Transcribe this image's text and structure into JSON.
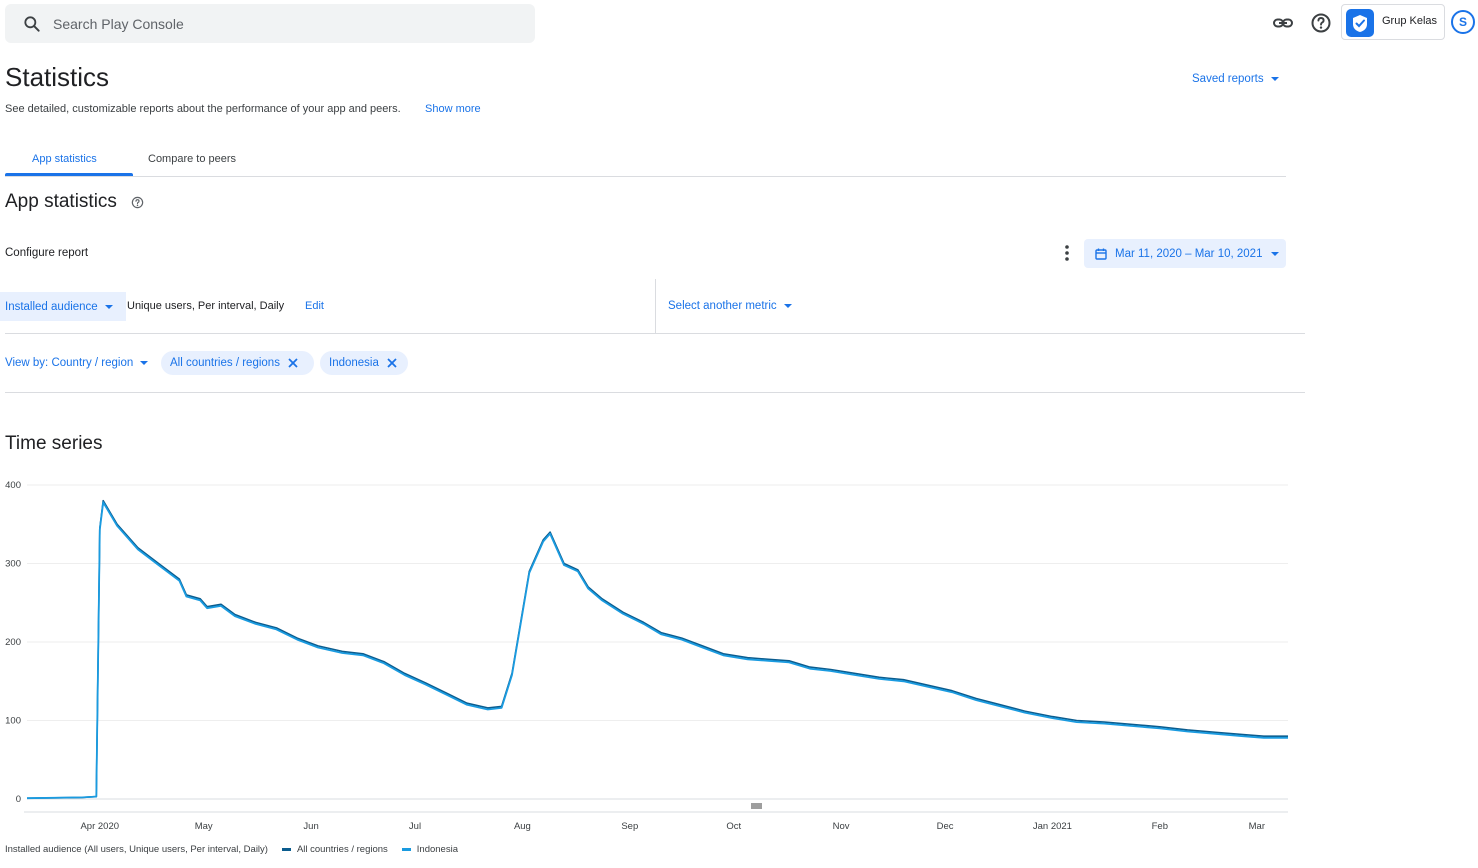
{
  "search": {
    "placeholder": "Search Play Console"
  },
  "app": {
    "name": "Grup Kelas"
  },
  "account": {
    "initial": "S"
  },
  "header": {
    "title": "Statistics",
    "description": "See detailed, customizable reports about the performance of your app and peers.",
    "show_more": "Show more",
    "saved_reports": "Saved reports"
  },
  "tabs": [
    {
      "label": "App statistics",
      "active": true
    },
    {
      "label": "Compare to peers",
      "active": false
    }
  ],
  "section": {
    "title": "App statistics"
  },
  "configure": {
    "label": "Configure report",
    "date_range": "Mar 11, 2020 – Mar 10, 2021"
  },
  "metric": {
    "name": "Installed audience",
    "detail": "Unique users, Per interval, Daily",
    "edit": "Edit",
    "select_another": "Select another metric"
  },
  "view_by": {
    "label": "View by: Country / region",
    "chips": [
      "All countries / regions",
      "Indonesia"
    ]
  },
  "colors": {
    "accent": "#1a73e8",
    "series_all": "#0b5c8e",
    "series_indonesia": "#1a9be0"
  },
  "chart_data": {
    "type": "line",
    "title": "Time series",
    "ylim": [
      0,
      400
    ],
    "yticks": [
      0,
      100,
      200,
      300,
      400
    ],
    "xlim": [
      "2020-03-11",
      "2021-03-10"
    ],
    "xticks": [
      {
        "date": "2020-04-01",
        "label": "Apr 2020"
      },
      {
        "date": "2020-05-01",
        "label": "May"
      },
      {
        "date": "2020-06-01",
        "label": "Jun"
      },
      {
        "date": "2020-07-01",
        "label": "Jul"
      },
      {
        "date": "2020-08-01",
        "label": "Aug"
      },
      {
        "date": "2020-09-01",
        "label": "Sep"
      },
      {
        "date": "2020-10-01",
        "label": "Oct"
      },
      {
        "date": "2020-11-01",
        "label": "Nov"
      },
      {
        "date": "2020-12-01",
        "label": "Dec"
      },
      {
        "date": "2021-01-01",
        "label": "Jan 2021"
      },
      {
        "date": "2021-02-01",
        "label": "Feb"
      },
      {
        "date": "2021-03-01",
        "label": "Mar"
      }
    ],
    "legend_title": "Installed audience (All users, Unique users, Per interval, Daily)",
    "series": [
      {
        "name": "All countries / regions",
        "points": [
          [
            "2020-03-11",
            1
          ],
          [
            "2020-03-27",
            2
          ],
          [
            "2020-03-31",
            3
          ],
          [
            "2020-04-01",
            345
          ],
          [
            "2020-04-02",
            380
          ],
          [
            "2020-04-06",
            350
          ],
          [
            "2020-04-12",
            320
          ],
          [
            "2020-04-18",
            300
          ],
          [
            "2020-04-24",
            280
          ],
          [
            "2020-04-26",
            260
          ],
          [
            "2020-04-30",
            255
          ],
          [
            "2020-05-02",
            245
          ],
          [
            "2020-05-06",
            248
          ],
          [
            "2020-05-10",
            235
          ],
          [
            "2020-05-16",
            225
          ],
          [
            "2020-05-22",
            218
          ],
          [
            "2020-05-28",
            205
          ],
          [
            "2020-06-03",
            195
          ],
          [
            "2020-06-10",
            188
          ],
          [
            "2020-06-16",
            185
          ],
          [
            "2020-06-22",
            175
          ],
          [
            "2020-06-28",
            160
          ],
          [
            "2020-07-04",
            148
          ],
          [
            "2020-07-10",
            135
          ],
          [
            "2020-07-16",
            122
          ],
          [
            "2020-07-22",
            116
          ],
          [
            "2020-07-26",
            118
          ],
          [
            "2020-07-29",
            160
          ],
          [
            "2020-08-03",
            290
          ],
          [
            "2020-08-07",
            330
          ],
          [
            "2020-08-09",
            340
          ],
          [
            "2020-08-13",
            300
          ],
          [
            "2020-08-17",
            292
          ],
          [
            "2020-08-20",
            270
          ],
          [
            "2020-08-24",
            255
          ],
          [
            "2020-08-30",
            238
          ],
          [
            "2020-09-05",
            225
          ],
          [
            "2020-09-10",
            212
          ],
          [
            "2020-09-16",
            205
          ],
          [
            "2020-09-22",
            195
          ],
          [
            "2020-09-28",
            185
          ],
          [
            "2020-10-05",
            180
          ],
          [
            "2020-10-11",
            178
          ],
          [
            "2020-10-17",
            176
          ],
          [
            "2020-10-23",
            168
          ],
          [
            "2020-10-29",
            165
          ],
          [
            "2020-11-05",
            160
          ],
          [
            "2020-11-12",
            155
          ],
          [
            "2020-11-19",
            152
          ],
          [
            "2020-11-26",
            145
          ],
          [
            "2020-12-03",
            138
          ],
          [
            "2020-12-10",
            128
          ],
          [
            "2020-12-17",
            120
          ],
          [
            "2020-12-24",
            112
          ],
          [
            "2021-01-01",
            105
          ],
          [
            "2021-01-08",
            100
          ],
          [
            "2021-01-16",
            98
          ],
          [
            "2021-01-24",
            95
          ],
          [
            "2021-02-01",
            92
          ],
          [
            "2021-02-09",
            88
          ],
          [
            "2021-02-17",
            85
          ],
          [
            "2021-02-25",
            82
          ],
          [
            "2021-03-03",
            80
          ],
          [
            "2021-03-10",
            80
          ]
        ]
      },
      {
        "name": "Indonesia",
        "points": [
          [
            "2020-03-11",
            1
          ],
          [
            "2020-03-27",
            2
          ],
          [
            "2020-03-31",
            3
          ],
          [
            "2020-04-01",
            343
          ],
          [
            "2020-04-02",
            378
          ],
          [
            "2020-04-06",
            348
          ],
          [
            "2020-04-12",
            318
          ],
          [
            "2020-04-18",
            298
          ],
          [
            "2020-04-24",
            278
          ],
          [
            "2020-04-26",
            258
          ],
          [
            "2020-04-30",
            253
          ],
          [
            "2020-05-02",
            243
          ],
          [
            "2020-05-06",
            246
          ],
          [
            "2020-05-10",
            233
          ],
          [
            "2020-05-16",
            223
          ],
          [
            "2020-05-22",
            216
          ],
          [
            "2020-05-28",
            203
          ],
          [
            "2020-06-03",
            193
          ],
          [
            "2020-06-10",
            186
          ],
          [
            "2020-06-16",
            183
          ],
          [
            "2020-06-22",
            173
          ],
          [
            "2020-06-28",
            158
          ],
          [
            "2020-07-04",
            146
          ],
          [
            "2020-07-10",
            133
          ],
          [
            "2020-07-16",
            120
          ],
          [
            "2020-07-22",
            114
          ],
          [
            "2020-07-26",
            116
          ],
          [
            "2020-07-29",
            158
          ],
          [
            "2020-08-03",
            288
          ],
          [
            "2020-08-07",
            328
          ],
          [
            "2020-08-09",
            338
          ],
          [
            "2020-08-13",
            298
          ],
          [
            "2020-08-17",
            290
          ],
          [
            "2020-08-20",
            268
          ],
          [
            "2020-08-24",
            253
          ],
          [
            "2020-08-30",
            236
          ],
          [
            "2020-09-05",
            223
          ],
          [
            "2020-09-10",
            210
          ],
          [
            "2020-09-16",
            203
          ],
          [
            "2020-09-22",
            193
          ],
          [
            "2020-09-28",
            183
          ],
          [
            "2020-10-05",
            178
          ],
          [
            "2020-10-11",
            176
          ],
          [
            "2020-10-17",
            174
          ],
          [
            "2020-10-23",
            166
          ],
          [
            "2020-10-29",
            163
          ],
          [
            "2020-11-05",
            158
          ],
          [
            "2020-11-12",
            153
          ],
          [
            "2020-11-19",
            150
          ],
          [
            "2020-11-26",
            143
          ],
          [
            "2020-12-03",
            136
          ],
          [
            "2020-12-10",
            126
          ],
          [
            "2020-12-17",
            118
          ],
          [
            "2020-12-24",
            110
          ],
          [
            "2021-01-01",
            103
          ],
          [
            "2021-01-08",
            98
          ],
          [
            "2021-01-16",
            96
          ],
          [
            "2021-01-24",
            93
          ],
          [
            "2021-02-01",
            90
          ],
          [
            "2021-02-09",
            86
          ],
          [
            "2021-02-17",
            83
          ],
          [
            "2021-02-25",
            80
          ],
          [
            "2021-03-03",
            78
          ],
          [
            "2021-03-10",
            78
          ]
        ]
      }
    ],
    "grid": true,
    "legend_position": "bottom-left"
  }
}
